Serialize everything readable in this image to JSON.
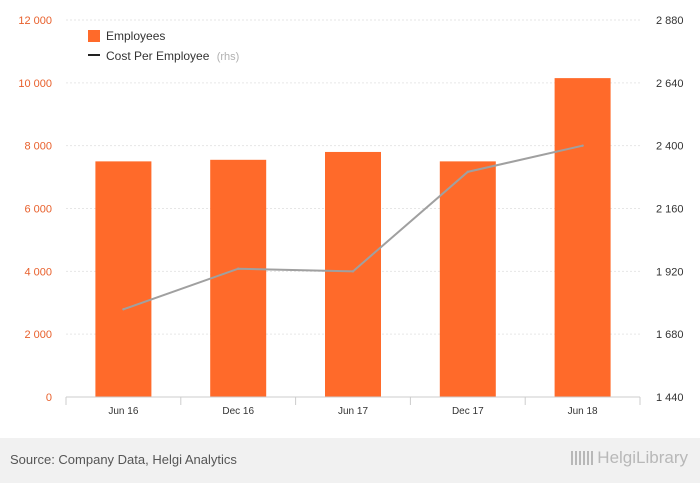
{
  "chart_data": {
    "type": "bar",
    "categories": [
      "Jun 16",
      "Dec 16",
      "Jun 17",
      "Dec 17",
      "Jun 18"
    ],
    "series": [
      {
        "name": "Employees",
        "type": "bar",
        "axis": "left",
        "values": [
          7500,
          7550,
          7800,
          7500,
          10150
        ]
      },
      {
        "name": "Cost Per Employee",
        "type": "line",
        "axis": "right",
        "values": [
          1775,
          1930,
          1920,
          2300,
          2400
        ]
      }
    ],
    "left_axis": {
      "ylim": [
        0,
        12000
      ],
      "ticks": [
        "0",
        "2 000",
        "4 000",
        "6 000",
        "8 000",
        "10 000",
        "12 000"
      ]
    },
    "right_axis": {
      "ylim": [
        1440,
        2880
      ],
      "ticks": [
        "1 440",
        "1 680",
        "1 920",
        "2 160",
        "2 400",
        "2 640",
        "2 880"
      ]
    },
    "grid": true,
    "legend_position": "top-left",
    "legend_note": "(rhs)",
    "colors": {
      "bar": "#ff6a2a",
      "line": "#a0a0a0",
      "line_legend": "#222222",
      "left_ticks": "#e8602c"
    }
  },
  "footer": {
    "source": "Source: Company Data, Helgi Analytics",
    "logo_text": "HelgiLibrary"
  }
}
